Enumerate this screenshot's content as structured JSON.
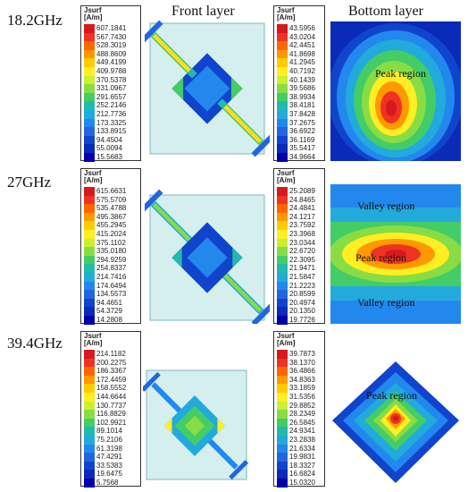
{
  "headers": {
    "front": "Front layer",
    "bottom": "Bottom layer"
  },
  "legend_title_line1": "Jsurf",
  "legend_title_line2": "[A/m]",
  "rows": [
    {
      "freq": "18.2GHz",
      "front_legend": [
        "607.1841",
        "567.7430",
        "528.3019",
        "488.8609",
        "449.4199",
        "409.9788",
        "370.5378",
        "331.0967",
        "291.6557",
        "252.2146",
        "212.7736",
        "173.3325",
        "133.8915",
        "94.4504",
        "55.0094",
        "15.5683"
      ],
      "bottom_legend": [
        "43.5956",
        "43.0204",
        "42.4451",
        "41.8698",
        "41.2945",
        "40.7192",
        "40.1439",
        "39.5686",
        "38.9934",
        "38.4181",
        "37.8428",
        "37.2675",
        "36.6922",
        "36.1169",
        "35.5417",
        "34.9664"
      ],
      "labels": [
        "Peak region"
      ]
    },
    {
      "freq": "27GHz",
      "front_legend": [
        "615.6631",
        "575.5709",
        "535.4788",
        "495.3867",
        "455.2945",
        "415.2024",
        "375.1102",
        "335.0180",
        "294.9259",
        "254.8337",
        "214.7416",
        "174.6494",
        "134.5573",
        "94.4651",
        "54.3729",
        "14.2808"
      ],
      "bottom_legend": [
        "25.2089",
        "24.8465",
        "24.4841",
        "24.1217",
        "23.7592",
        "23.3968",
        "23.0344",
        "22.6720",
        "22.3095",
        "21.9471",
        "21.5847",
        "21.2223",
        "20.8599",
        "20.4974",
        "20.1350",
        "19.7726"
      ],
      "labels": [
        "Valley region",
        "Peak region",
        "Valley region"
      ]
    },
    {
      "freq": "39.4GHz",
      "front_legend": [
        "214.1182",
        "200.2275",
        "186.3367",
        "172.4459",
        "158.5552",
        "144.6644",
        "130.7737",
        "116.8829",
        "102.9921",
        "89.1014",
        "75.2106",
        "61.3198",
        "47.4291",
        "33.5383",
        "19.6475",
        "5.7568"
      ],
      "bottom_legend": [
        "39.7873",
        "38.1370",
        "36.4866",
        "34.8363",
        "33.1859",
        "31.5356",
        "29.8852",
        "28.2349",
        "26.5845",
        "24.9341",
        "23.2838",
        "21.6334",
        "19.9831",
        "18.3327",
        "16.6824",
        "15.0320"
      ],
      "labels": [
        "Peak region"
      ]
    }
  ],
  "colors": [
    "#d7191c",
    "#ee3322",
    "#ff6600",
    "#ff9900",
    "#ffcc00",
    "#ffee22",
    "#ccee33",
    "#88dd44",
    "#44cc66",
    "#22bbaa",
    "#22aadd",
    "#2288ee",
    "#2266dd",
    "#1144cc",
    "#0a2ab8",
    "#0000aa"
  ]
}
